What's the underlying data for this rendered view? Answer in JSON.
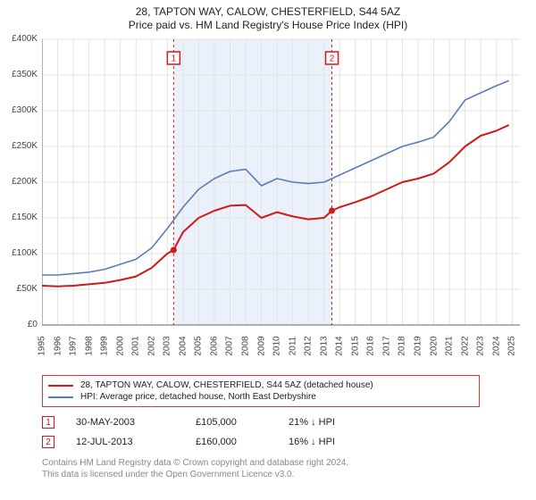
{
  "title_line1": "28, TAPTON WAY, CALOW, CHESTERFIELD, S44 5AZ",
  "title_line2": "Price paid vs. HM Land Registry's House Price Index (HPI)",
  "chart": {
    "type": "line",
    "background_color": "#ffffff",
    "grid_color": "#e3e3e3",
    "axis_color": "#666666",
    "x_years": [
      1995,
      1996,
      1997,
      1998,
      1999,
      2000,
      2001,
      2002,
      2003,
      2004,
      2005,
      2006,
      2007,
      2008,
      2009,
      2010,
      2011,
      2012,
      2013,
      2014,
      2015,
      2016,
      2017,
      2018,
      2019,
      2020,
      2021,
      2022,
      2023,
      2024,
      2025
    ],
    "xlim": [
      1995,
      2025.5
    ],
    "ylim": [
      0,
      400000
    ],
    "ytick_step": 50000,
    "ytick_labels": [
      "£0",
      "£50K",
      "£100K",
      "£150K",
      "£200K",
      "£250K",
      "£300K",
      "£350K",
      "£400K"
    ],
    "highlight_band": {
      "x_from": 2003.4,
      "x_to": 2013.5,
      "color": "#eaf1fb"
    },
    "sale_vlines": [
      {
        "x": 2003.4,
        "label": "1",
        "dash_color": "#d11919"
      },
      {
        "x": 2013.5,
        "label": "2",
        "dash_color": "#d11919"
      }
    ],
    "sale_points": [
      {
        "x": 2003.4,
        "y": 105000,
        "color": "#d11919"
      },
      {
        "x": 2013.5,
        "y": 160000,
        "color": "#d11919"
      }
    ],
    "series": [
      {
        "name": "price_paid",
        "color": "#d11919",
        "line_width": 2,
        "points": [
          [
            1995.0,
            55000
          ],
          [
            1996.0,
            54000
          ],
          [
            1997.0,
            55000
          ],
          [
            1998.0,
            57000
          ],
          [
            1999.0,
            59000
          ],
          [
            2000.0,
            63000
          ],
          [
            2001.0,
            68000
          ],
          [
            2002.0,
            80000
          ],
          [
            2003.0,
            100000
          ],
          [
            2003.4,
            105000
          ],
          [
            2004.0,
            130000
          ],
          [
            2005.0,
            150000
          ],
          [
            2006.0,
            160000
          ],
          [
            2007.0,
            167000
          ],
          [
            2008.0,
            168000
          ],
          [
            2009.0,
            150000
          ],
          [
            2010.0,
            158000
          ],
          [
            2011.0,
            152000
          ],
          [
            2012.0,
            148000
          ],
          [
            2013.0,
            150000
          ],
          [
            2013.5,
            160000
          ],
          [
            2014.0,
            165000
          ],
          [
            2015.0,
            172000
          ],
          [
            2016.0,
            180000
          ],
          [
            2017.0,
            190000
          ],
          [
            2018.0,
            200000
          ],
          [
            2019.0,
            205000
          ],
          [
            2020.0,
            212000
          ],
          [
            2021.0,
            228000
          ],
          [
            2022.0,
            250000
          ],
          [
            2023.0,
            265000
          ],
          [
            2024.0,
            272000
          ],
          [
            2024.8,
            280000
          ]
        ]
      },
      {
        "name": "hpi",
        "color": "#5a7db8",
        "line_width": 1.6,
        "points": [
          [
            1995.0,
            70000
          ],
          [
            1996.0,
            70000
          ],
          [
            1997.0,
            72000
          ],
          [
            1998.0,
            74000
          ],
          [
            1999.0,
            78000
          ],
          [
            2000.0,
            85000
          ],
          [
            2001.0,
            92000
          ],
          [
            2002.0,
            108000
          ],
          [
            2003.0,
            135000
          ],
          [
            2004.0,
            165000
          ],
          [
            2005.0,
            190000
          ],
          [
            2006.0,
            205000
          ],
          [
            2007.0,
            215000
          ],
          [
            2008.0,
            218000
          ],
          [
            2009.0,
            195000
          ],
          [
            2010.0,
            205000
          ],
          [
            2011.0,
            200000
          ],
          [
            2012.0,
            198000
          ],
          [
            2013.0,
            200000
          ],
          [
            2014.0,
            210000
          ],
          [
            2015.0,
            220000
          ],
          [
            2016.0,
            230000
          ],
          [
            2017.0,
            240000
          ],
          [
            2018.0,
            250000
          ],
          [
            2019.0,
            256000
          ],
          [
            2020.0,
            263000
          ],
          [
            2021.0,
            285000
          ],
          [
            2022.0,
            315000
          ],
          [
            2023.0,
            325000
          ],
          [
            2024.0,
            335000
          ],
          [
            2024.8,
            342000
          ]
        ]
      }
    ]
  },
  "legend": {
    "border_color": "#c93d3d",
    "rows": [
      {
        "color": "#d11919",
        "label": "28, TAPTON WAY, CALOW, CHESTERFIELD, S44 5AZ (detached house)"
      },
      {
        "color": "#5a7db8",
        "label": "HPI: Average price, detached house, North East Derbyshire"
      }
    ]
  },
  "sales_table": {
    "rows": [
      {
        "marker": "1",
        "date": "30-MAY-2003",
        "price": "£105,000",
        "delta": "21% ↓ HPI"
      },
      {
        "marker": "2",
        "date": "12-JUL-2013",
        "price": "£160,000",
        "delta": "16% ↓ HPI"
      }
    ]
  },
  "footer_line1": "Contains HM Land Registry data © Crown copyright and database right 2024.",
  "footer_line2": "This data is licensed under the Open Government Licence v3.0."
}
